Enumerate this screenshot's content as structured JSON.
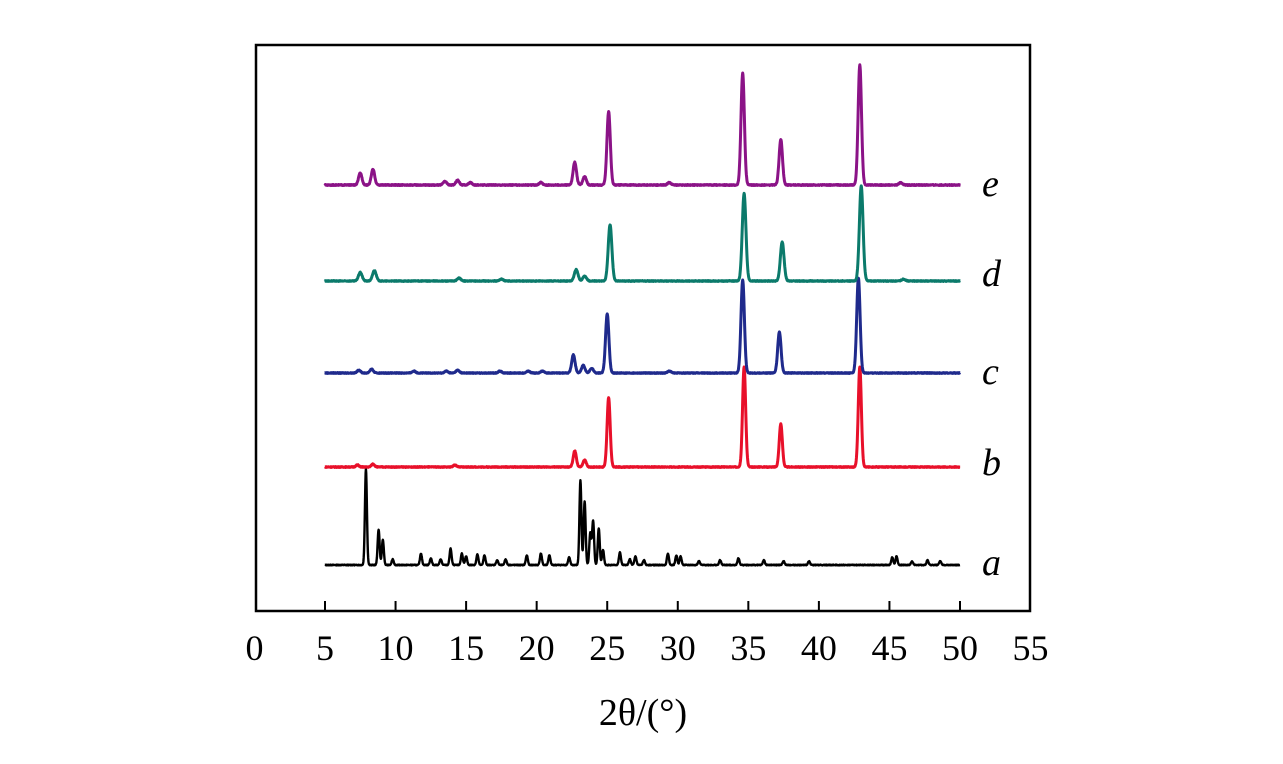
{
  "chart_data": {
    "type": "line",
    "title": "",
    "xlabel": "2θ/(°)",
    "ylabel": "",
    "xlim": [
      0,
      55
    ],
    "x_ticks": [
      0,
      5,
      10,
      15,
      20,
      25,
      30,
      35,
      40,
      45,
      50,
      55
    ],
    "x_tick_labels": [
      "0",
      "5",
      "10",
      "15",
      "20",
      "25",
      "30",
      "35",
      "40",
      "45",
      "50",
      "55"
    ],
    "x_range": [
      5,
      50
    ],
    "y_ticks": [],
    "grid": false,
    "legend": "none",
    "series": [
      {
        "name": "a",
        "color": "#000000",
        "peaks": [
          {
            "x": 7.9,
            "h": 1.0
          },
          {
            "x": 8.8,
            "h": 0.37
          },
          {
            "x": 9.1,
            "h": 0.26
          },
          {
            "x": 9.8,
            "h": 0.06
          },
          {
            "x": 11.8,
            "h": 0.12
          },
          {
            "x": 12.5,
            "h": 0.07
          },
          {
            "x": 13.2,
            "h": 0.06
          },
          {
            "x": 13.9,
            "h": 0.17
          },
          {
            "x": 14.7,
            "h": 0.12
          },
          {
            "x": 15.0,
            "h": 0.09
          },
          {
            "x": 15.8,
            "h": 0.11
          },
          {
            "x": 16.3,
            "h": 0.1
          },
          {
            "x": 17.2,
            "h": 0.05
          },
          {
            "x": 17.8,
            "h": 0.06
          },
          {
            "x": 19.3,
            "h": 0.1
          },
          {
            "x": 20.3,
            "h": 0.12
          },
          {
            "x": 20.9,
            "h": 0.1
          },
          {
            "x": 22.3,
            "h": 0.08
          },
          {
            "x": 23.1,
            "h": 0.88
          },
          {
            "x": 23.4,
            "h": 0.66
          },
          {
            "x": 23.8,
            "h": 0.33
          },
          {
            "x": 24.0,
            "h": 0.46
          },
          {
            "x": 24.4,
            "h": 0.38
          },
          {
            "x": 24.7,
            "h": 0.16
          },
          {
            "x": 25.9,
            "h": 0.13
          },
          {
            "x": 26.6,
            "h": 0.06
          },
          {
            "x": 27.0,
            "h": 0.09
          },
          {
            "x": 27.6,
            "h": 0.05
          },
          {
            "x": 29.3,
            "h": 0.12
          },
          {
            "x": 29.9,
            "h": 0.1
          },
          {
            "x": 30.2,
            "h": 0.09
          },
          {
            "x": 31.5,
            "h": 0.04
          },
          {
            "x": 33.0,
            "h": 0.05
          },
          {
            "x": 34.3,
            "h": 0.07
          },
          {
            "x": 36.1,
            "h": 0.05
          },
          {
            "x": 37.5,
            "h": 0.04
          },
          {
            "x": 39.3,
            "h": 0.04
          },
          {
            "x": 45.2,
            "h": 0.08
          },
          {
            "x": 45.5,
            "h": 0.09
          },
          {
            "x": 46.6,
            "h": 0.04
          },
          {
            "x": 47.7,
            "h": 0.05
          },
          {
            "x": 48.6,
            "h": 0.04
          }
        ]
      },
      {
        "name": "b",
        "color": "#e8102a",
        "peaks": [
          {
            "x": 7.3,
            "h": 0.02
          },
          {
            "x": 8.4,
            "h": 0.03
          },
          {
            "x": 14.2,
            "h": 0.02
          },
          {
            "x": 22.7,
            "h": 0.16
          },
          {
            "x": 23.4,
            "h": 0.07
          },
          {
            "x": 25.1,
            "h": 0.69
          },
          {
            "x": 34.7,
            "h": 1.0
          },
          {
            "x": 37.3,
            "h": 0.43
          },
          {
            "x": 42.9,
            "h": 1.0
          }
        ]
      },
      {
        "name": "c",
        "color": "#1f2a8c",
        "peaks": [
          {
            "x": 7.4,
            "h": 0.03
          },
          {
            "x": 8.3,
            "h": 0.04
          },
          {
            "x": 11.3,
            "h": 0.02
          },
          {
            "x": 13.6,
            "h": 0.02
          },
          {
            "x": 14.4,
            "h": 0.03
          },
          {
            "x": 17.4,
            "h": 0.02
          },
          {
            "x": 19.4,
            "h": 0.02
          },
          {
            "x": 20.4,
            "h": 0.02
          },
          {
            "x": 22.6,
            "h": 0.19
          },
          {
            "x": 23.3,
            "h": 0.08
          },
          {
            "x": 23.9,
            "h": 0.05
          },
          {
            "x": 25.0,
            "h": 0.62
          },
          {
            "x": 29.4,
            "h": 0.02
          },
          {
            "x": 34.6,
            "h": 0.98
          },
          {
            "x": 37.2,
            "h": 0.43
          },
          {
            "x": 42.8,
            "h": 1.0
          }
        ]
      },
      {
        "name": "d",
        "color": "#0b7a6b",
        "peaks": [
          {
            "x": 7.5,
            "h": 0.09
          },
          {
            "x": 8.5,
            "h": 0.11
          },
          {
            "x": 14.5,
            "h": 0.03
          },
          {
            "x": 17.5,
            "h": 0.02
          },
          {
            "x": 22.8,
            "h": 0.12
          },
          {
            "x": 23.4,
            "h": 0.05
          },
          {
            "x": 25.2,
            "h": 0.59
          },
          {
            "x": 34.7,
            "h": 0.92
          },
          {
            "x": 37.4,
            "h": 0.41
          },
          {
            "x": 43.0,
            "h": 1.0
          },
          {
            "x": 46.0,
            "h": 0.02
          }
        ]
      },
      {
        "name": "e",
        "color": "#8b1387",
        "peaks": [
          {
            "x": 7.5,
            "h": 0.1
          },
          {
            "x": 8.4,
            "h": 0.13
          },
          {
            "x": 13.5,
            "h": 0.03
          },
          {
            "x": 14.4,
            "h": 0.04
          },
          {
            "x": 15.3,
            "h": 0.02
          },
          {
            "x": 20.3,
            "h": 0.02
          },
          {
            "x": 22.7,
            "h": 0.19
          },
          {
            "x": 23.4,
            "h": 0.07
          },
          {
            "x": 25.1,
            "h": 0.61
          },
          {
            "x": 29.4,
            "h": 0.02
          },
          {
            "x": 34.6,
            "h": 0.93
          },
          {
            "x": 37.3,
            "h": 0.38
          },
          {
            "x": 42.9,
            "h": 1.0
          },
          {
            "x": 45.8,
            "h": 0.02
          }
        ]
      }
    ]
  }
}
